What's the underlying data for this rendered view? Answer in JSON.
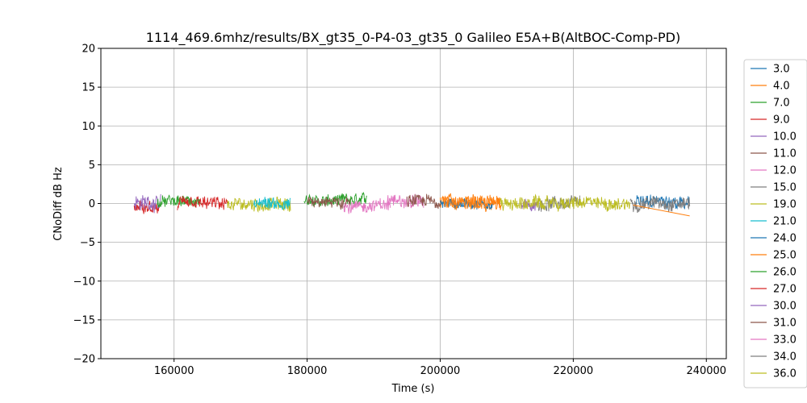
{
  "chart_data": {
    "type": "line",
    "title": "1114_469.6mhz/results/BX_gt35_0-P4-03_gt35_0 Galileo E5A+B(AltBOC-Comp-PD)",
    "xlabel": "Time (s)",
    "ylabel": "CNoDiff dB Hz",
    "xlim": [
      149000,
      243000
    ],
    "ylim": [
      -20,
      20
    ],
    "xticks": [
      160000,
      180000,
      200000,
      220000,
      240000
    ],
    "xtick_labels": [
      "160000",
      "180000",
      "200000",
      "220000",
      "240000"
    ],
    "yticks": [
      -20,
      -15,
      -10,
      -5,
      0,
      5,
      10,
      15,
      20
    ],
    "ytick_labels": [
      "−20",
      "−15",
      "−10",
      "−5",
      "0",
      "5",
      "10",
      "15",
      "20"
    ],
    "grid": true,
    "legend_position": "outside-right",
    "series": [
      {
        "name": "3.0",
        "color": "#1f77b4",
        "x_range": [
          229500,
          237500
        ],
        "mean": 0.2,
        "noise": 1.0
      },
      {
        "name": "4.0",
        "color": "#ff7f0e",
        "x_range": [
          200000,
          209200
        ],
        "mean": 0.1,
        "noise": 1.0
      },
      {
        "name": "7.0",
        "color": "#2ca02c",
        "x_range": [
          179500,
          189000
        ],
        "mean": 0.3,
        "noise": 0.9
      },
      {
        "name": "9.0",
        "color": "#d62728",
        "x_range": [
          154000,
          157800
        ],
        "mean": -0.2,
        "noise": 1.0
      },
      {
        "name": "10.0",
        "color": "#9467bd",
        "x_range": [
          154000,
          158000
        ],
        "mean": 0.1,
        "noise": 1.2
      },
      {
        "name": "11.0",
        "color": "#8c564b",
        "x_range": [
          180000,
          186500
        ],
        "mean": 0.2,
        "noise": 0.9
      },
      {
        "name": "12.0",
        "color": "#e377c2",
        "x_range": [
          192000,
          197500
        ],
        "mean": 0.3,
        "noise": 1.0
      },
      {
        "name": "15.0",
        "color": "#7f7f7f",
        "x_range": [
          214500,
          221000
        ],
        "mean": 0.0,
        "noise": 1.0
      },
      {
        "name": "19.0",
        "color": "#bcbd22",
        "x_range": [
          168000,
          177500
        ],
        "mean": -0.1,
        "noise": 1.0
      },
      {
        "name": "21.0",
        "color": "#17becf",
        "x_range": [
          172000,
          177500
        ],
        "mean": 0.0,
        "noise": 0.9
      },
      {
        "name": "24.0",
        "color": "#1f77b4",
        "x_range": [
          200000,
          208000
        ],
        "mean": 0.0,
        "noise": 0.8
      },
      {
        "name": "25.0",
        "color": "#ff7f0e",
        "x_range": [
          200500,
          209000
        ],
        "mean": 0.2,
        "noise": 1.1
      },
      {
        "name": "26.0",
        "color": "#2ca02c",
        "x_range": [
          157500,
          164000
        ],
        "mean": 0.2,
        "noise": 0.8
      },
      {
        "name": "27.0",
        "color": "#d62728",
        "x_range": [
          160500,
          168000
        ],
        "mean": -0.1,
        "noise": 1.0
      },
      {
        "name": "30.0",
        "color": "#9467bd",
        "x_range": [
          212000,
          214500
        ],
        "mean": -0.4,
        "noise": 0.8
      },
      {
        "name": "31.0",
        "color": "#8c564b",
        "x_range": [
          195000,
          200000
        ],
        "mean": 0.2,
        "noise": 1.0
      },
      {
        "name": "33.0",
        "color": "#e377c2",
        "x_range": [
          185500,
          192500
        ],
        "mean": -0.3,
        "noise": 0.9
      },
      {
        "name": "34.0",
        "color": "#7f7f7f",
        "x_range": [
          228500,
          237500
        ],
        "mean": 0.1,
        "noise": 1.0
      },
      {
        "name": "36.0",
        "color": "#bcbd22",
        "x_range": [
          209000,
          228500
        ],
        "mean": 0.0,
        "noise": 1.0
      }
    ],
    "annotations": [
      {
        "series": "25.0",
        "x": [
          229000,
          237500
        ],
        "y": [
          -0.2,
          -1.6
        ]
      }
    ]
  }
}
